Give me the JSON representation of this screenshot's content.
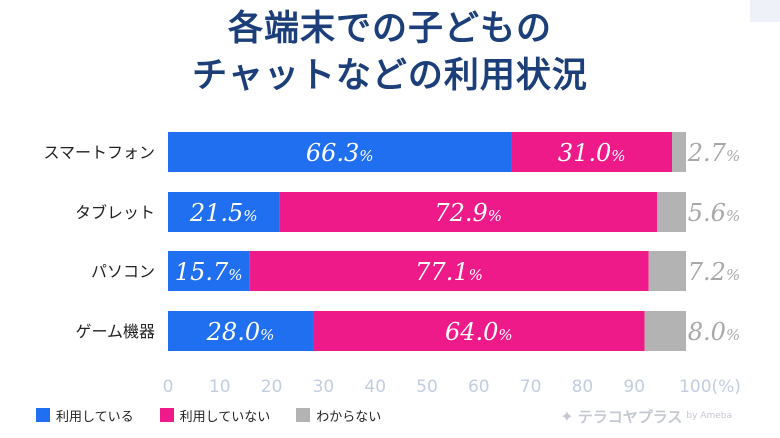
{
  "title": {
    "line1": "各端末での子どもの",
    "line2": "チャットなどの利用状況"
  },
  "legend": {
    "items": [
      {
        "label": "利用している",
        "color": "#1f6ff0"
      },
      {
        "label": "利用していない",
        "color": "#ee1a8a"
      },
      {
        "label": "わからない",
        "color": "#b3b3b3"
      }
    ]
  },
  "watermark": {
    "icon": "sparkle-icon",
    "text": "テラコヤプラス",
    "sub": "by Ameba"
  },
  "chart_data": {
    "type": "bar",
    "orientation": "horizontal",
    "stacked": true,
    "categories": [
      "スマートフォン",
      "タブレット",
      "パソコン",
      "ゲーム機器"
    ],
    "series": [
      {
        "name": "利用している",
        "color": "#1f6ff0",
        "values": [
          66.3,
          21.5,
          15.7,
          28.0
        ],
        "labels": [
          "66.3",
          "21.5",
          "15.7",
          "28.0"
        ]
      },
      {
        "name": "利用していない",
        "color": "#ee1a8a",
        "values": [
          31.0,
          72.9,
          77.1,
          64.0
        ],
        "labels": [
          "31.0",
          "72.9",
          "77.1",
          "64.0"
        ]
      },
      {
        "name": "わからない",
        "color": "#b3b3b3",
        "values": [
          2.7,
          5.6,
          7.2,
          8.0
        ],
        "labels": [
          "2.7",
          "5.6",
          "7.2",
          "8.0"
        ]
      }
    ],
    "unit": "%",
    "xticks": [
      "0",
      "10",
      "20",
      "30",
      "40",
      "50",
      "60",
      "70",
      "80",
      "90",
      "100(%)"
    ],
    "xlim": [
      0,
      100
    ],
    "grid": false,
    "legend_position": "bottom-left"
  }
}
